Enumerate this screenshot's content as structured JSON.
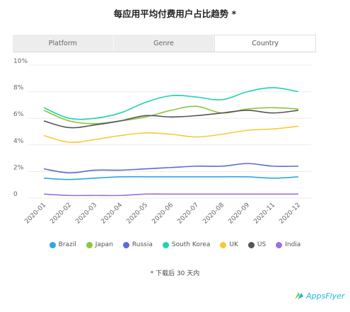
{
  "title": "每应用平均付费用户占比趋势 *",
  "tabs": [
    {
      "label": "Platform",
      "active": false
    },
    {
      "label": "Genre",
      "active": false
    },
    {
      "label": "Country",
      "active": true
    }
  ],
  "footnote": "* 下载后 30 天内",
  "logo": {
    "text": "AppsFlyer",
    "color": "#1fb6d8"
  },
  "chart_data": {
    "type": "line",
    "categories": [
      "2020-01",
      "2020-02",
      "2020-03",
      "2020-04",
      "2020-05",
      "2020-06",
      "2020-07",
      "2020-08",
      "2020-09",
      "2020-11",
      "2020-12"
    ],
    "y_ticks": [
      "0",
      "2%",
      "4%",
      "6%",
      "8%",
      "10%"
    ],
    "ylim": [
      0,
      10
    ],
    "grid": true,
    "legend_position": "bottom",
    "series": [
      {
        "name": "Brazil",
        "color": "#2aa8e6",
        "values": [
          1.5,
          1.4,
          1.5,
          1.6,
          1.6,
          1.6,
          1.6,
          1.6,
          1.6,
          1.5,
          1.6
        ]
      },
      {
        "name": "Japan",
        "color": "#8dc63f",
        "values": [
          6.6,
          5.8,
          5.6,
          5.8,
          6.1,
          6.6,
          6.9,
          6.4,
          6.7,
          6.8,
          6.7
        ]
      },
      {
        "name": "Russia",
        "color": "#5b6bd5",
        "values": [
          2.2,
          1.9,
          2.1,
          2.1,
          2.2,
          2.3,
          2.4,
          2.4,
          2.6,
          2.4,
          2.4
        ]
      },
      {
        "name": "South Korea",
        "color": "#20d3b0",
        "values": [
          6.8,
          6.0,
          6.0,
          6.4,
          7.2,
          7.7,
          7.6,
          7.4,
          8.0,
          8.3,
          8.0
        ]
      },
      {
        "name": "UK",
        "color": "#f7c93a",
        "values": [
          4.7,
          4.2,
          4.4,
          4.7,
          4.9,
          4.8,
          4.6,
          4.8,
          5.1,
          5.2,
          5.4
        ]
      },
      {
        "name": "US",
        "color": "#555555",
        "values": [
          5.8,
          5.3,
          5.5,
          5.8,
          6.2,
          6.1,
          6.2,
          6.4,
          6.6,
          6.4,
          6.6
        ]
      },
      {
        "name": "India",
        "color": "#9b6ee6",
        "values": [
          0.3,
          0.2,
          0.2,
          0.2,
          0.3,
          0.3,
          0.3,
          0.3,
          0.3,
          0.3,
          0.3
        ]
      }
    ]
  }
}
